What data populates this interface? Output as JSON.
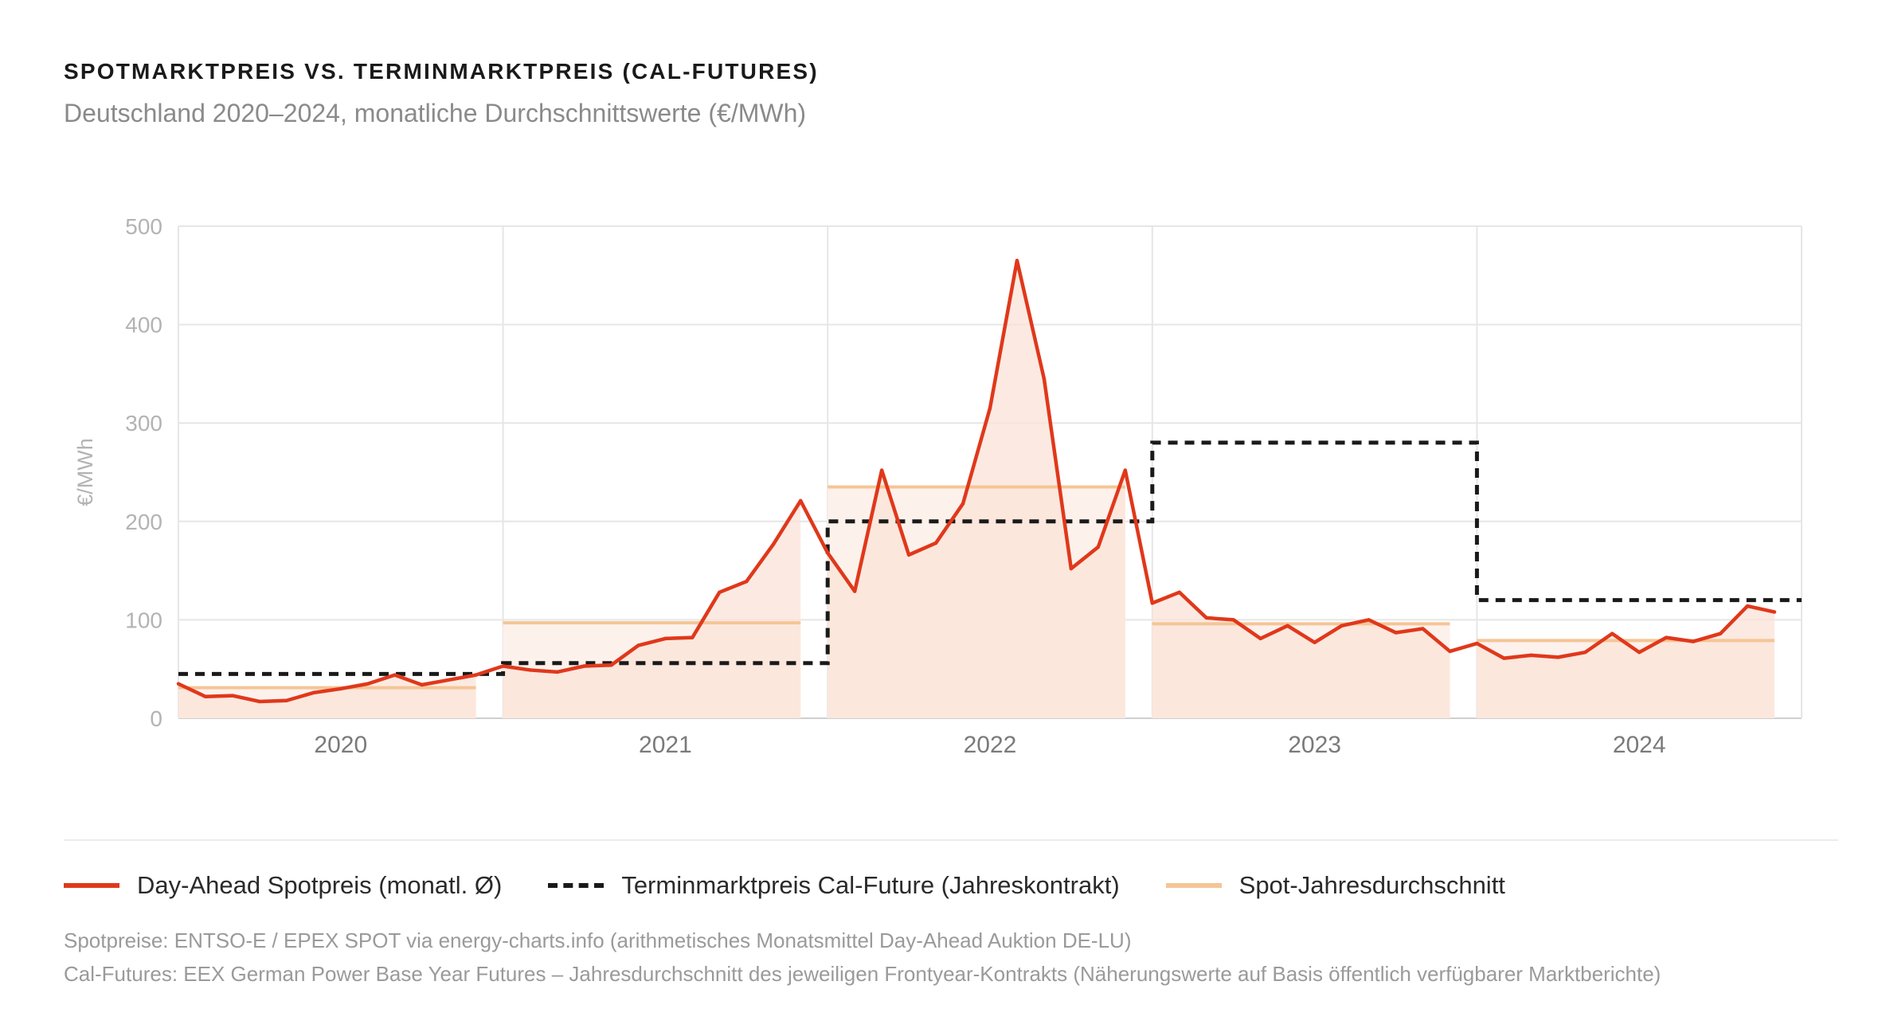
{
  "header": {
    "title": "SPOTMARKTPREIS VS. TERMINMARKTPREIS (CAL-FUTURES)",
    "subtitle": "Deutschland 2020–2024, monatliche Durchschnittswerte (€/MWh)"
  },
  "colors": {
    "spot": "#e0381b",
    "future": "#1a1a1a",
    "avg": "#f5c595",
    "area": "#fbe3d8"
  },
  "chart_data": {
    "type": "line",
    "title": "SPOTMARKTPREIS VS. TERMINMARKTPREIS (CAL-FUTURES)",
    "ylabel": "€/MWh",
    "xlabel": "",
    "ylim": [
      0,
      500
    ],
    "yticks": [
      0,
      100,
      200,
      300,
      400,
      500
    ],
    "years": [
      "2020",
      "2021",
      "2022",
      "2023",
      "2024"
    ],
    "grid": true,
    "legend_position": "bottom",
    "series": [
      {
        "name": "Day-Ahead Spotpreis (monatl. Ø)",
        "style": "line-area",
        "values": [
          35,
          22,
          23,
          17,
          18,
          26,
          30,
          35,
          44,
          34,
          39,
          44,
          53,
          49,
          47,
          53,
          54,
          74,
          81,
          82,
          128,
          139,
          177,
          221,
          168,
          129,
          252,
          166,
          178,
          218,
          315,
          465,
          345,
          152,
          174,
          252,
          117,
          128,
          102,
          100,
          81,
          94,
          77,
          94,
          100,
          87,
          91,
          68,
          76,
          61,
          64,
          62,
          67,
          86,
          67,
          82,
          78,
          86,
          114,
          108
        ]
      },
      {
        "name": "Terminmarktpreis Cal-Future (Jahreskontrakt)",
        "style": "dashed-step",
        "values": [
          45,
          56,
          200,
          280,
          120
        ]
      },
      {
        "name": "Spot-Jahresdurchschnitt",
        "style": "step-band",
        "values": [
          31,
          97,
          235,
          96,
          79
        ]
      }
    ]
  },
  "legend": {
    "spot": "Day-Ahead Spotpreis (monatl. Ø)",
    "future": "Terminmarktpreis Cal-Future (Jahreskontrakt)",
    "avg": "Spot-Jahresdurchschnitt"
  },
  "sources": {
    "line1": "Spotpreise: ENTSO-E / EPEX SPOT via energy-charts.info (arithmetisches Monatsmittel Day-Ahead Auktion DE-LU)",
    "line2": "Cal-Futures: EEX German Power Base Year Futures – Jahresdurchschnitt des jeweiligen Frontyear-Kontrakts (Näherungswerte auf Basis öffentlich verfügbarer Marktberichte)"
  }
}
